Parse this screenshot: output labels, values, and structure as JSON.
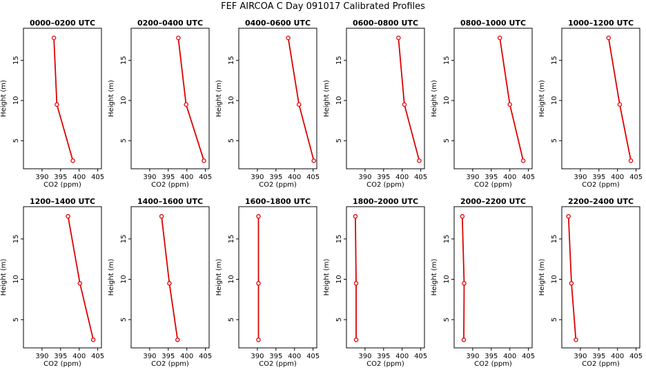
{
  "figure": {
    "title": "FEF  AIRCOA C  Day 091017  Calibrated Profiles"
  },
  "style": {
    "series_color": "#dd0000",
    "axis_color": "#000000"
  },
  "chart_data": [
    {
      "type": "line",
      "title": "0000–0200 UTC",
      "xlabel": "CO2 (ppm)",
      "ylabel": "Height (m)",
      "xlim": [
        385,
        406
      ],
      "ylim": [
        1.5,
        19
      ],
      "xticks": [
        390,
        395,
        400,
        405
      ],
      "yticks": [
        5,
        10,
        15
      ],
      "grid": false,
      "series": [
        {
          "x": [
            393.2,
            394.0,
            398.3
          ],
          "y": [
            17.8,
            9.5,
            2.5
          ]
        }
      ]
    },
    {
      "type": "line",
      "title": "0200–0400 UTC",
      "xlabel": "CO2 (ppm)",
      "ylabel": "Height (m)",
      "xlim": [
        385,
        406
      ],
      "ylim": [
        1.5,
        19
      ],
      "xticks": [
        390,
        395,
        400,
        405
      ],
      "yticks": [
        5,
        10,
        15
      ],
      "grid": false,
      "series": [
        {
          "x": [
            397.7,
            399.8,
            404.6
          ],
          "y": [
            17.8,
            9.5,
            2.5
          ]
        }
      ]
    },
    {
      "type": "line",
      "title": "0400–0600 UTC",
      "xlabel": "CO2 (ppm)",
      "ylabel": "Height (m)",
      "xlim": [
        385,
        406
      ],
      "ylim": [
        1.5,
        19
      ],
      "xticks": [
        390,
        395,
        400,
        405
      ],
      "yticks": [
        5,
        10,
        15
      ],
      "grid": false,
      "series": [
        {
          "x": [
            398.3,
            401.2,
            405.2
          ],
          "y": [
            17.8,
            9.5,
            2.5
          ]
        }
      ]
    },
    {
      "type": "line",
      "title": "0600–0800 UTC",
      "xlabel": "CO2 (ppm)",
      "ylabel": "Height (m)",
      "xlim": [
        385,
        406
      ],
      "ylim": [
        1.5,
        19
      ],
      "xticks": [
        390,
        395,
        400,
        405
      ],
      "yticks": [
        5,
        10,
        15
      ],
      "grid": false,
      "series": [
        {
          "x": [
            399.0,
            400.6,
            404.6
          ],
          "y": [
            17.8,
            9.5,
            2.5
          ]
        }
      ]
    },
    {
      "type": "line",
      "title": "0800–1000 UTC",
      "xlabel": "CO2 (ppm)",
      "ylabel": "Height (m)",
      "xlim": [
        385,
        406
      ],
      "ylim": [
        1.5,
        19
      ],
      "xticks": [
        390,
        395,
        400,
        405
      ],
      "yticks": [
        5,
        10,
        15
      ],
      "grid": false,
      "series": [
        {
          "x": [
            397.3,
            400.0,
            403.6
          ],
          "y": [
            17.8,
            9.5,
            2.5
          ]
        }
      ]
    },
    {
      "type": "line",
      "title": "1000–1200 UTC",
      "xlabel": "CO2 (ppm)",
      "ylabel": "Height (m)",
      "xlim": [
        385,
        406
      ],
      "ylim": [
        1.5,
        19
      ],
      "xticks": [
        390,
        395,
        400,
        405
      ],
      "yticks": [
        5,
        10,
        15
      ],
      "grid": false,
      "series": [
        {
          "x": [
            397.6,
            400.6,
            403.6
          ],
          "y": [
            17.8,
            9.5,
            2.5
          ]
        }
      ]
    },
    {
      "type": "line",
      "title": "1200–1400 UTC",
      "xlabel": "CO2 (ppm)",
      "ylabel": "Height (m)",
      "xlim": [
        385,
        406
      ],
      "ylim": [
        1.5,
        19
      ],
      "xticks": [
        390,
        395,
        400,
        405
      ],
      "yticks": [
        5,
        10,
        15
      ],
      "grid": false,
      "series": [
        {
          "x": [
            397.0,
            400.2,
            403.8
          ],
          "y": [
            17.8,
            9.5,
            2.5
          ]
        }
      ]
    },
    {
      "type": "line",
      "title": "1400–1600 UTC",
      "xlabel": "CO2 (ppm)",
      "ylabel": "Height (m)",
      "xlim": [
        385,
        406
      ],
      "ylim": [
        1.5,
        19
      ],
      "xticks": [
        390,
        395,
        400,
        405
      ],
      "yticks": [
        5,
        10,
        15
      ],
      "grid": false,
      "series": [
        {
          "x": [
            393.2,
            395.3,
            397.5
          ],
          "y": [
            17.8,
            9.5,
            2.5
          ]
        }
      ]
    },
    {
      "type": "line",
      "title": "1600–1800 UTC",
      "xlabel": "CO2 (ppm)",
      "ylabel": "Height (m)",
      "xlim": [
        385,
        406
      ],
      "ylim": [
        1.5,
        19
      ],
      "xticks": [
        390,
        395,
        400,
        405
      ],
      "yticks": [
        5,
        10,
        15
      ],
      "grid": false,
      "series": [
        {
          "x": [
            390.3,
            390.3,
            390.3
          ],
          "y": [
            17.8,
            9.5,
            2.5
          ]
        }
      ]
    },
    {
      "type": "line",
      "title": "1800–2000 UTC",
      "xlabel": "CO2 (ppm)",
      "ylabel": "Height (m)",
      "xlim": [
        385,
        406
      ],
      "ylim": [
        1.5,
        19
      ],
      "xticks": [
        390,
        395,
        400,
        405
      ],
      "yticks": [
        5,
        10,
        15
      ],
      "grid": false,
      "series": [
        {
          "x": [
            387.4,
            387.6,
            387.6
          ],
          "y": [
            17.8,
            9.5,
            2.5
          ]
        }
      ]
    },
    {
      "type": "line",
      "title": "2000–2200 UTC",
      "xlabel": "CO2 (ppm)",
      "ylabel": "Height (m)",
      "xlim": [
        385,
        406
      ],
      "ylim": [
        1.5,
        19
      ],
      "xticks": [
        390,
        395,
        400,
        405
      ],
      "yticks": [
        5,
        10,
        15
      ],
      "grid": false,
      "series": [
        {
          "x": [
            387.2,
            387.7,
            387.6
          ],
          "y": [
            17.8,
            9.5,
            2.5
          ]
        }
      ]
    },
    {
      "type": "line",
      "title": "2200–2400 UTC",
      "xlabel": "CO2 (ppm)",
      "ylabel": "Height (m)",
      "xlim": [
        385,
        406
      ],
      "ylim": [
        1.5,
        19
      ],
      "xticks": [
        390,
        395,
        400,
        405
      ],
      "yticks": [
        5,
        10,
        15
      ],
      "grid": false,
      "series": [
        {
          "x": [
            386.8,
            387.6,
            388.8
          ],
          "y": [
            17.8,
            9.5,
            2.5
          ]
        }
      ]
    }
  ]
}
